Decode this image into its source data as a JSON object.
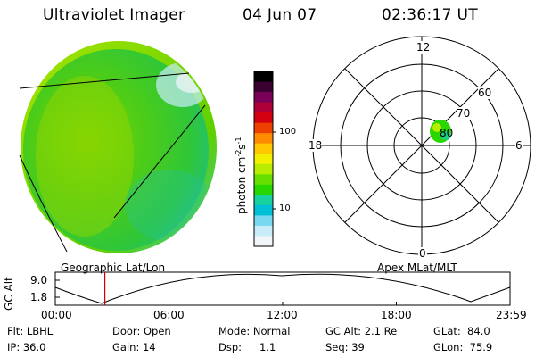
{
  "header": {
    "instrument": "Ultraviolet Imager",
    "date": "04 Jun 07",
    "time": "02:36:17 UT"
  },
  "colorbar": {
    "label": "photon cm-2s-1",
    "label_main": "photon cm",
    "label_sup1": "-2",
    "label_mid": "s",
    "label_sup2": "-1",
    "ticks": [
      "100",
      "10"
    ],
    "colors": [
      "#000000",
      "#3a0030",
      "#7a0058",
      "#b0003a",
      "#d40010",
      "#ee4000",
      "#ff8c00",
      "#ffc800",
      "#f2f000",
      "#b8ec00",
      "#66e000",
      "#28d600",
      "#18d0a0",
      "#00c0d8",
      "#78d8f0",
      "#c8ecf8",
      "#f2f6f8"
    ]
  },
  "polar": {
    "mlt_labels": [
      "12",
      "18",
      "6",
      "0"
    ],
    "lat_labels": [
      "60",
      "70",
      "80"
    ]
  },
  "timeline": {
    "ylabel": "GC Alt",
    "yticks": [
      "9.0",
      "1.8"
    ],
    "left_label": "Geographic Lat/Lon",
    "right_label": "Apex MLat/MLT",
    "xticks": [
      "00:00",
      "06:00",
      "12:00",
      "18:00",
      "23:59"
    ],
    "current_time_fraction": 0.109
  },
  "info": {
    "filter": "Flt: LBHL",
    "ip": "IP: 36.0",
    "door": "Door: Open",
    "gain": "Gain: 14",
    "mode": "Mode: Normal",
    "dsp_label": "Dsp:",
    "dsp_value": "1.1",
    "gc_alt": "GC Alt: 2.1 Re",
    "seq": "Seq: 39",
    "glat": "GLat:  84.0",
    "glon": "GLon:  75.9"
  }
}
